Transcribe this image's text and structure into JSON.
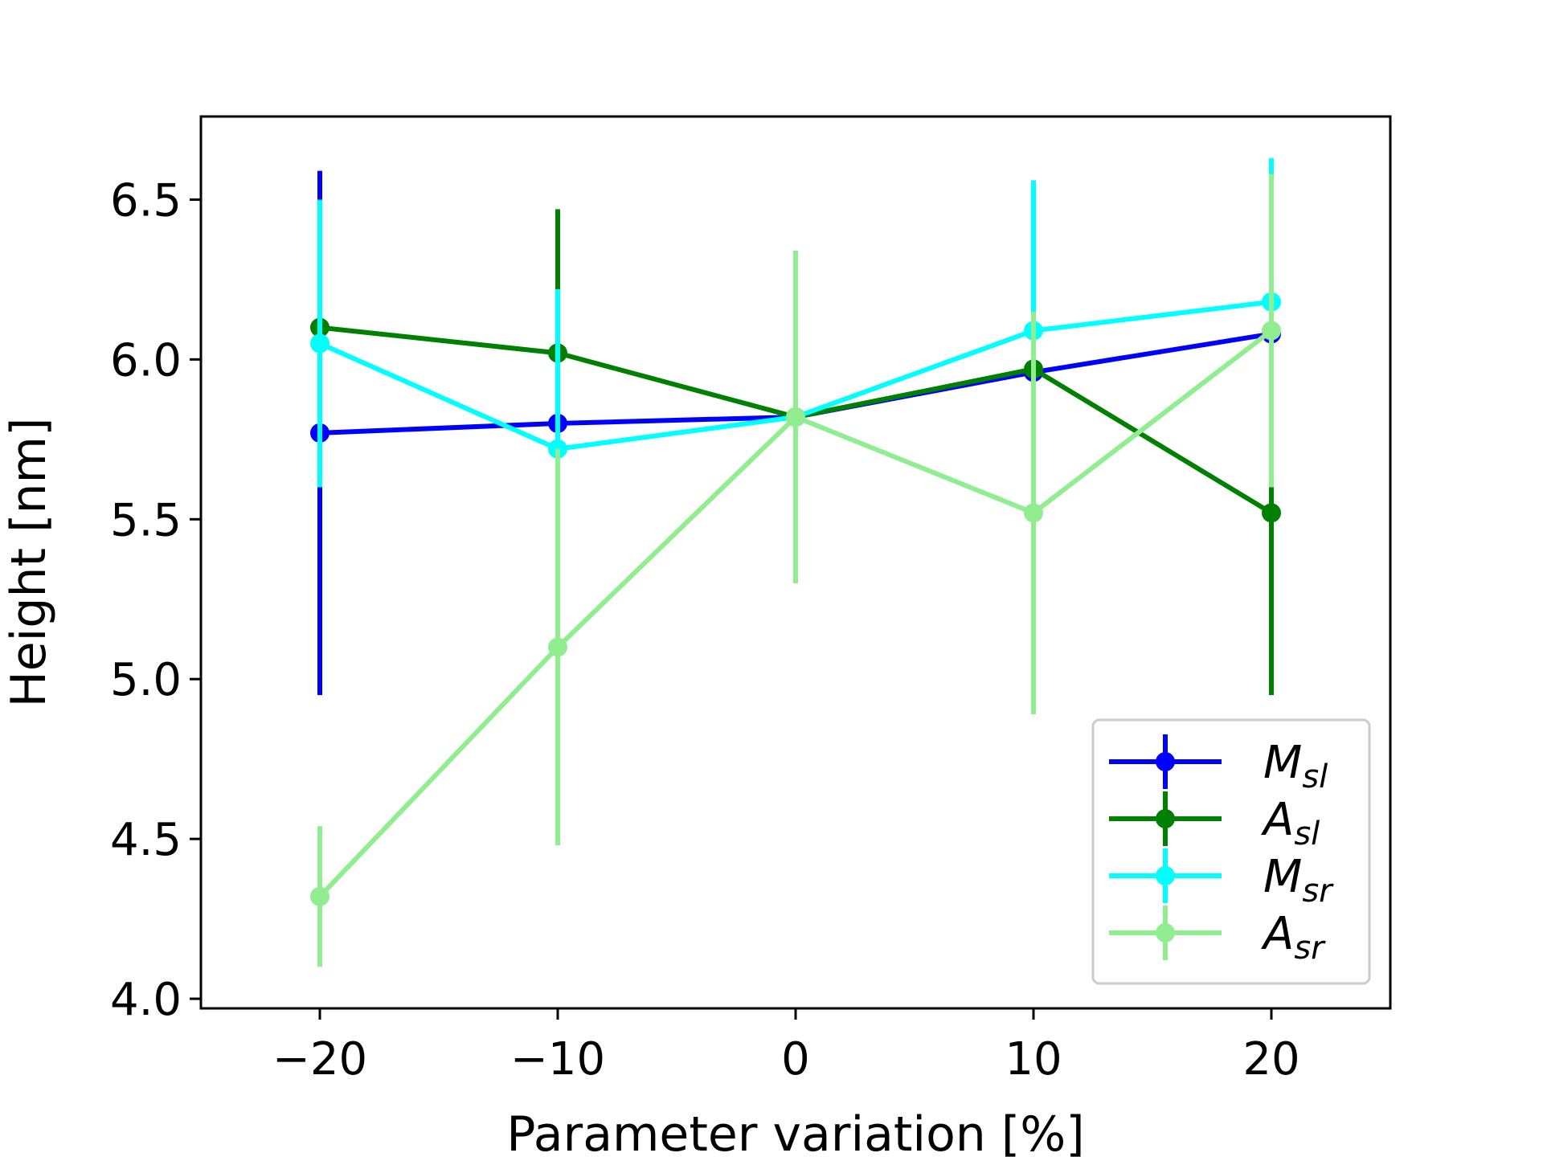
{
  "chart_data": {
    "type": "line",
    "title": "",
    "xlabel": "Parameter variation [%]",
    "ylabel": "Height [nm]",
    "xlim": [
      -25,
      25
    ],
    "ylim": [
      3.97,
      6.76
    ],
    "x": [
      -20,
      -10,
      0,
      10,
      20
    ],
    "xticks": [
      -20,
      -10,
      0,
      10,
      20
    ],
    "xtick_labels": [
      "−20",
      "−10",
      "0",
      "10",
      "20"
    ],
    "yticks": [
      4.0,
      4.5,
      5.0,
      5.5,
      6.0,
      6.5
    ],
    "ytick_labels": [
      "4.0",
      "4.5",
      "5.0",
      "5.5",
      "6.0",
      "6.5"
    ],
    "grid": false,
    "legend_position": "lower-right",
    "series": [
      {
        "name": "M_sl",
        "label_main": "M",
        "label_sub": "sl",
        "color": "#0000ff",
        "values": [
          5.77,
          5.8,
          5.82,
          5.96,
          6.08
        ],
        "errors": [
          0.82,
          0.42,
          0.52,
          0.6,
          0.5
        ]
      },
      {
        "name": "A_sl",
        "label_main": "A",
        "label_sub": "sl",
        "color": "#008000",
        "values": [
          6.1,
          6.02,
          5.82,
          5.97,
          5.52
        ],
        "errors": [
          0.31,
          0.45,
          0.52,
          0.35,
          0.57
        ]
      },
      {
        "name": "M_sr",
        "label_main": "M",
        "label_sub": "sr",
        "color": "#00ffff",
        "values": [
          6.05,
          5.72,
          5.82,
          6.09,
          6.18
        ],
        "errors": [
          0.45,
          0.5,
          0.52,
          0.47,
          0.45
        ]
      },
      {
        "name": "A_sr",
        "label_main": "A",
        "label_sub": "sr",
        "color": "#90ee90",
        "values": [
          4.32,
          5.1,
          5.82,
          5.52,
          6.09
        ],
        "errors": [
          0.22,
          0.62,
          0.52,
          0.63,
          0.49
        ]
      }
    ]
  }
}
